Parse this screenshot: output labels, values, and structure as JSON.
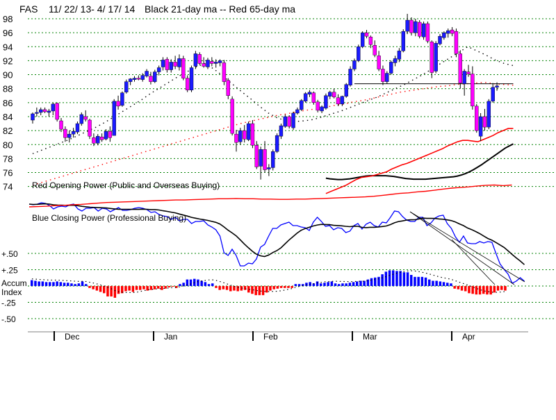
{
  "header": {
    "ticker": "FAS",
    "date_range": "11/ 22/ 13- 4/ 17/ 14",
    "ma_note": "Black 21-day ma --  Red 65-day ma"
  },
  "labels": {
    "opening_power": "Red Opening Power (Public and Overseas Buying)",
    "closing_power": "Blue Closing Power (Professional Buying)",
    "accum": "Accum",
    "index": "Index"
  },
  "colors": {
    "up_candle": "#1a1aff",
    "down_candle": "#ff00ff",
    "ma21": "#000000",
    "ma65": "#ff0000",
    "opening_power": "#ff0000",
    "closing_power": "#0000ff",
    "accum_pos": "#0000ff",
    "accum_neg": "#ff0000",
    "grid": "#008000"
  },
  "chart_data": [
    {
      "type": "candlestick",
      "title": "FAS  11/ 22/ 13- 4/ 17/ 14  Black 21-day ma --  Red 65-day ma",
      "yticks": [
        98,
        96,
        94,
        92,
        90,
        88,
        86,
        84,
        82,
        80,
        78,
        76,
        74
      ],
      "ylim": [
        73.5,
        99
      ],
      "month_labels": [
        "Dec",
        "Jan",
        "Feb",
        "Mar",
        "Apr"
      ],
      "month_start_index": [
        7,
        38,
        68,
        98,
        128
      ],
      "grid": true,
      "candles": [
        [
          83.5,
          84.6,
          83,
          84.4
        ],
        [
          84.5,
          85.3,
          84,
          84.6
        ],
        [
          84.6,
          85.3,
          84.2,
          85
        ],
        [
          85,
          85.3,
          84.5,
          84.7
        ],
        [
          84.6,
          85.1,
          84,
          84.8
        ],
        [
          84.8,
          86,
          84.2,
          85.8
        ],
        [
          85.9,
          86,
          83.3,
          83.6
        ],
        [
          83.4,
          83.8,
          81.8,
          82.2
        ],
        [
          82.2,
          82.6,
          80.4,
          81
        ],
        [
          81,
          82,
          80.3,
          81.5
        ],
        [
          81.5,
          82.4,
          81,
          81.9
        ],
        [
          81.8,
          83.3,
          81.5,
          83
        ],
        [
          83,
          84.6,
          82.7,
          84.3
        ],
        [
          84,
          84.9,
          83.3,
          83.6
        ],
        [
          83.5,
          83.7,
          80.8,
          81.2
        ],
        [
          81,
          81.6,
          79.8,
          80.2
        ],
        [
          80.2,
          81.5,
          79.9,
          81.2
        ],
        [
          81.1,
          81.6,
          80.4,
          80.7
        ],
        [
          80.8,
          82.2,
          80.6,
          81.9
        ],
        [
          81.9,
          82.6,
          80.4,
          81
        ],
        [
          81.3,
          86.5,
          81.3,
          86.2
        ],
        [
          86.2,
          87,
          85,
          85.5
        ],
        [
          85.6,
          87.6,
          85.4,
          87.4
        ],
        [
          87.5,
          89.3,
          87.3,
          89
        ],
        [
          89,
          89.5,
          88.5,
          89.4
        ],
        [
          89.3,
          89.8,
          89,
          89.5
        ],
        [
          89.5,
          89.9,
          89.2,
          89.4
        ],
        [
          89.3,
          90.2,
          89,
          89.9
        ],
        [
          89.8,
          90.8,
          89.6,
          90.5
        ],
        [
          89.8,
          90.4,
          88.6,
          89
        ],
        [
          89,
          90.7,
          88.8,
          90.4
        ],
        [
          90.4,
          91.3,
          89.9,
          91
        ],
        [
          91.1,
          92.5,
          90.6,
          92.1
        ],
        [
          92.2,
          92.5,
          90.3,
          90.7
        ],
        [
          90.7,
          92.2,
          90.3,
          91.8
        ],
        [
          91.8,
          92.7,
          90.8,
          91.2
        ],
        [
          91.1,
          92.9,
          90.6,
          92.3
        ],
        [
          92.3,
          92.7,
          89.2,
          89.5
        ],
        [
          89.5,
          89.9,
          87.5,
          87.8
        ],
        [
          87.8,
          91.3,
          87.5,
          91
        ],
        [
          91.2,
          93.4,
          90.8,
          93
        ],
        [
          92.9,
          93.2,
          91.4,
          91.6
        ],
        [
          91.6,
          92.5,
          91,
          91.2
        ],
        [
          91.1,
          92.4,
          90.8,
          92.1
        ],
        [
          91.9,
          92.5,
          91.2,
          91.6
        ],
        [
          91.6,
          92.2,
          91,
          91.8
        ],
        [
          91.7,
          92.2,
          91.2,
          92
        ],
        [
          91.7,
          92.1,
          88.5,
          89
        ],
        [
          89.2,
          89.5,
          86.5,
          87
        ],
        [
          86.5,
          86.9,
          81.3,
          81.6
        ],
        [
          81.5,
          82.1,
          79,
          80.3
        ],
        [
          80.4,
          82.4,
          80,
          82
        ],
        [
          82,
          82.8,
          80.3,
          80.8
        ],
        [
          80.7,
          83.3,
          80.5,
          83
        ],
        [
          83,
          83.5,
          79.5,
          79.9
        ],
        [
          79.9,
          80.5,
          76.5,
          76.8
        ],
        [
          76.9,
          79.7,
          75,
          79.3
        ],
        [
          79.3,
          80.5,
          76,
          76.4
        ],
        [
          76.5,
          77.2,
          75.5,
          76.7
        ],
        [
          76.7,
          79.3,
          76.3,
          79
        ],
        [
          79,
          81.6,
          78.8,
          81.3
        ],
        [
          81.2,
          83,
          80.8,
          82.7
        ],
        [
          82.6,
          84.3,
          82.4,
          84
        ],
        [
          84,
          84.2,
          82.3,
          82.6
        ],
        [
          82.4,
          84.7,
          82.1,
          84.5
        ],
        [
          84.5,
          85.3,
          84.3,
          85
        ],
        [
          85,
          86.5,
          84.8,
          86.3
        ],
        [
          86.2,
          87.5,
          86,
          87.3
        ],
        [
          87.2,
          87.8,
          86.8,
          87.5
        ],
        [
          87.4,
          87.6,
          85.7,
          86
        ],
        [
          86.1,
          86.4,
          84.6,
          84.9
        ],
        [
          84.8,
          85.6,
          84.5,
          85.4
        ],
        [
          85.2,
          87.3,
          85,
          87
        ],
        [
          86.9,
          87.7,
          86.5,
          87.5
        ],
        [
          87.5,
          88,
          86.6,
          86.8
        ],
        [
          86.7,
          87.2,
          85.5,
          85.8
        ],
        [
          85.8,
          87,
          85.5,
          86.9
        ],
        [
          86.9,
          88.8,
          86.7,
          88.6
        ],
        [
          88.5,
          91.2,
          88.3,
          90.8
        ],
        [
          90.8,
          92.3,
          90.5,
          92
        ],
        [
          92,
          94.3,
          91.8,
          94
        ],
        [
          94,
          96.2,
          93.8,
          96
        ],
        [
          96,
          96.4,
          95.2,
          95.5
        ],
        [
          95.4,
          95.6,
          93.8,
          94.3
        ],
        [
          94.2,
          94.9,
          92.5,
          92.8
        ],
        [
          92.7,
          93.4,
          90.5,
          90.8
        ],
        [
          90.8,
          91.3,
          88.5,
          89
        ],
        [
          89,
          90.5,
          88.7,
          90.2
        ],
        [
          90.2,
          92,
          90,
          91.8
        ],
        [
          91.7,
          92.7,
          91.2,
          92.3
        ],
        [
          92.2,
          93.8,
          91.8,
          93.4
        ],
        [
          93.4,
          96.5,
          93.2,
          96.2
        ],
        [
          96.2,
          98.7,
          95.8,
          97.8
        ],
        [
          97.8,
          98.2,
          95.6,
          96
        ],
        [
          96,
          98,
          95.5,
          97.6
        ],
        [
          97.5,
          97.8,
          95.2,
          95.5
        ],
        [
          95.4,
          97.6,
          95,
          97.3
        ],
        [
          97.3,
          97.6,
          94.5,
          94.8
        ],
        [
          94.7,
          94.9,
          89.5,
          90.3
        ],
        [
          90.5,
          94.8,
          90.2,
          94.5
        ],
        [
          94.4,
          95.8,
          94.2,
          95.5
        ],
        [
          95.3,
          96.2,
          95,
          96
        ],
        [
          95.9,
          96.6,
          95.3,
          96.3
        ],
        [
          96.4,
          96.8,
          95.5,
          95.9
        ],
        [
          96.2,
          96.6,
          92.5,
          93
        ],
        [
          93,
          93.5,
          88,
          88.8
        ],
        [
          88.7,
          90.8,
          87,
          90.5
        ],
        [
          90.4,
          91.4,
          89.7,
          90.1
        ],
        [
          90.1,
          91.2,
          85,
          85.5
        ],
        [
          85.5,
          85.8,
          81.7,
          82
        ],
        [
          81.2,
          84.5,
          80.5,
          84
        ],
        [
          84,
          85.1,
          82,
          82.5
        ],
        [
          82.5,
          86.5,
          82.2,
          86.2
        ],
        [
          86.2,
          88.8,
          86,
          88.2
        ],
        [
          88.2,
          88.9,
          87.7,
          88.4
        ]
      ],
      "ma21": [
        75.2,
        75.1,
        75.05,
        75.0,
        75.0,
        75.05,
        75.1,
        75.2,
        75.3,
        75.4,
        75.5,
        75.55,
        75.55,
        75.55,
        75.55,
        75.55,
        75.5,
        75.45,
        75.35,
        75.25,
        75.15,
        75.1,
        75.05,
        75.05,
        75.05,
        75.05,
        75.1,
        75.15,
        75.2,
        75.25,
        75.3,
        75.35,
        75.4,
        75.5,
        75.65,
        75.85,
        76.1,
        76.4,
        76.75,
        77.1,
        77.5,
        77.9,
        78.3,
        78.7,
        79.1,
        79.5,
        79.8,
        80.1
      ],
      "ma65": [
        73.0,
        73.3,
        73.6,
        73.9,
        74.2,
        74.6,
        75.0,
        75.3,
        75.4,
        75.5,
        75.7,
        75.9,
        76.1,
        76.5,
        76.8,
        77.1,
        77.3,
        77.6,
        77.9,
        78.2,
        78.5,
        78.8,
        79.1,
        79.4,
        79.8,
        80.1,
        80.4,
        80.6,
        80.6,
        80.5,
        80.4,
        80.7,
        81.0,
        81.3,
        81.7,
        82.0,
        82.3,
        82.3
      ],
      "resistance_line_y": 88.7,
      "dotted_ma": [
        {
          "color": "black",
          "values": [
            78.7,
            79.2,
            79.7,
            80.2,
            80.7,
            81.3,
            81.9,
            82.5,
            83.2,
            84,
            84.8,
            85.6,
            86.4,
            87.3,
            88.1,
            88.9,
            89.7,
            90.4,
            91.1,
            91.6,
            90.8,
            89.8,
            88.7,
            87.6,
            86.6,
            85.5,
            84.5,
            83.8,
            83.4,
            83.3,
            83.4,
            83.6,
            84,
            84.4,
            84.8,
            85.3,
            85.8,
            86.3,
            86.8,
            87.4,
            88,
            88.6,
            89.3,
            90,
            90.8,
            91.6,
            92.4,
            93.2,
            94,
            93.4,
            92.8,
            92.1,
            91.6,
            91.3
          ]
        },
        {
          "color": "red",
          "values": [
            74.2,
            74.6,
            75,
            75.4,
            75.8,
            76.2,
            76.6,
            77,
            77.4,
            77.8,
            78.2,
            78.6,
            79,
            79.4,
            79.8,
            80.2,
            80.6,
            81,
            81.4,
            81.8,
            82.2,
            82.6,
            83,
            83.3,
            83.6,
            83.9,
            84.2,
            84.4,
            84.7,
            84.9,
            85.1,
            85.3,
            85.6,
            85.8,
            86.1,
            86.3,
            86.6,
            86.9,
            87.2,
            87.5,
            87.7,
            87.9,
            88.1,
            88.3,
            88.4,
            88.6,
            88.7,
            88.8,
            88.9,
            88.7,
            88.6,
            88.5
          ]
        }
      ]
    },
    {
      "type": "line",
      "title": "Red Opening Power (Public and Overseas Buying) / Blue Closing Power (Professional Buying)",
      "series": [
        {
          "name": "Blue Closing Power (Professional Buying)",
          "values": [
            294,
            295,
            294,
            292,
            293,
            296,
            301,
            298,
            297,
            298,
            295,
            294,
            301,
            304,
            300,
            300,
            299,
            304,
            300,
            301,
            305,
            302,
            299,
            303,
            303,
            302,
            300,
            299,
            300,
            302,
            306,
            305,
            309,
            311,
            312,
            316,
            313,
            318,
            316,
            316,
            322,
            319,
            319,
            318,
            324,
            327,
            331,
            340,
            364,
            368,
            359,
            368,
            383,
            383,
            379,
            380,
            373,
            356,
            352,
            340,
            329,
            329,
            324,
            322,
            320,
            325,
            325,
            327,
            328,
            332,
            320,
            313,
            319,
            326,
            325,
            331,
            328,
            329,
            335,
            333,
            325,
            322,
            330,
            323,
            320,
            325,
            327,
            320,
            321,
            313,
            304,
            305,
            312,
            317,
            319,
            319,
            313,
            313,
            325,
            321,
            314,
            311,
            310,
            322,
            329,
            341,
            349,
            340,
            350,
            351,
            351,
            348,
            350,
            348,
            349,
            365,
            380,
            388,
            395,
            408,
            405,
            400,
            405
          ]
        },
        {
          "name": "Red Opening Power (Public and Overseas Buying)",
          "values": [
            0.0,
            0.5,
            1,
            2,
            2.5,
            3.5,
            4,
            5,
            6,
            7,
            7.5,
            8,
            8.5,
            9,
            9.5,
            10,
            10.5,
            11,
            11,
            11.5,
            12,
            12.5,
            13,
            13,
            13.5,
            13,
            13,
            12.5,
            12.5,
            12,
            12,
            12.5,
            12.5,
            13,
            13.5,
            14,
            14.5,
            15,
            15.5,
            16,
            17,
            18.5,
            20,
            21.5,
            22.5,
            24,
            25,
            26.5,
            28.5,
            30,
            31,
            32,
            33.5,
            34.5,
            35,
            34,
            35
          ]
        }
      ],
      "markers": {
        "ma_line_on_closing_power": true
      }
    },
    {
      "type": "bar",
      "title": "Accum Index",
      "yticks": [
        "+.50",
        "+.25",
        "-.25",
        "-.50"
      ],
      "ylim": [
        -0.5,
        0.5
      ],
      "values": [
        0.09,
        0.08,
        0.07,
        0.07,
        0.06,
        0.06,
        0.06,
        0.07,
        0.06,
        0.05,
        0.05,
        0.04,
        0.03,
        0.04,
        0.07,
        0.03,
        -0.03,
        -0.05,
        -0.07,
        -0.09,
        -0.11,
        -0.16,
        -0.16,
        -0.18,
        -0.12,
        -0.11,
        -0.08,
        -0.07,
        -0.09,
        -0.06,
        -0.06,
        -0.05,
        -0.07,
        -0.06,
        -0.05,
        -0.04,
        -0.06,
        -0.04,
        -0.02,
        -0.01,
        -0.03,
        0.03,
        0.05,
        0.1,
        0.1,
        0.11,
        0.1,
        0.08,
        0.06,
        0.03,
        0.04,
        -0.03,
        -0.06,
        -0.05,
        -0.06,
        -0.08,
        -0.07,
        -0.08,
        -0.07,
        -0.06,
        -0.1,
        -0.12,
        -0.14,
        -0.14,
        -0.14,
        -0.1,
        -0.07,
        -0.05,
        -0.04,
        -0.03,
        -0.03,
        -0.03,
        -0.03,
        0.03,
        0.03,
        0.03,
        0.05,
        0.06,
        0.04,
        0.07,
        0.04,
        0.05,
        0.06,
        0.07,
        0.04,
        0.03,
        0.04,
        0.04,
        0.05,
        0.06,
        0.07,
        0.08,
        0.08,
        0.1,
        0.12,
        0.13,
        0.14,
        0.18,
        0.22,
        0.24,
        0.24,
        0.23,
        0.23,
        0.21,
        0.21,
        0.17,
        0.14,
        0.14,
        0.14,
        0.13,
        0.1,
        0.08,
        0.08,
        0.07,
        0.06,
        0.05,
        0.04,
        -0.04,
        -0.05,
        -0.07,
        -0.08,
        -0.11,
        -0.12,
        -0.13,
        -0.13,
        -0.12,
        -0.13,
        -0.13,
        -0.1,
        -0.07,
        -0.06,
        -0.07
      ]
    }
  ]
}
